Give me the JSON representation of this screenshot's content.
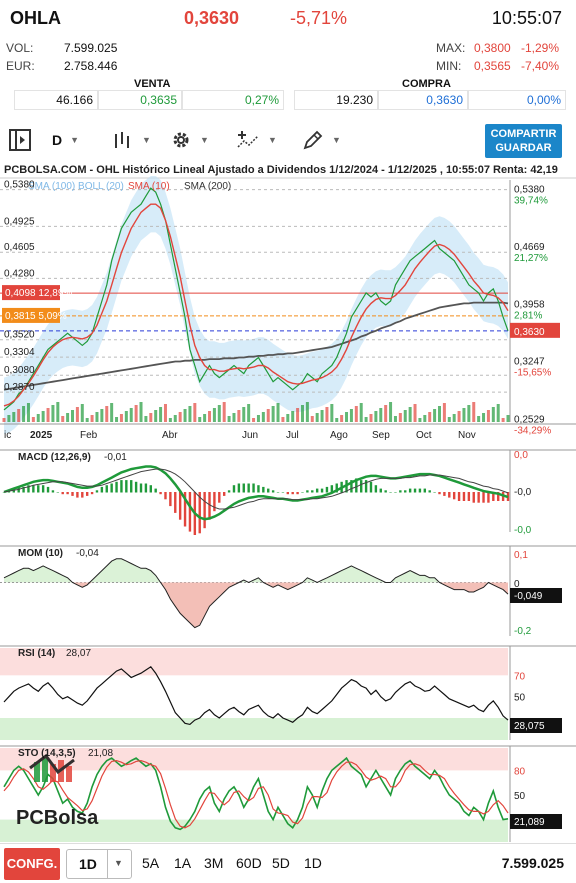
{
  "header": {
    "ticker": "OHLA",
    "price": "0,3630",
    "change_pct": "-5,71%",
    "time": "10:55:07",
    "vol_label": "VOL:",
    "vol_value": "7.599.025",
    "eur_label": "EUR:",
    "eur_value": "2.758.446",
    "max_label": "MAX:",
    "max_value": "0,3800",
    "max_pct": "-1,29%",
    "min_label": "MIN:",
    "min_value": "0,3565",
    "min_pct": "-7,40%"
  },
  "orderbook": {
    "venta_label": "VENTA",
    "compra_label": "COMPRA",
    "venta_qty": "46.166",
    "venta_price": "0,3635",
    "venta_pct": "0,27%",
    "compra_qty": "19.230",
    "compra_price": "0,3630",
    "compra_pct": "0,00%"
  },
  "toolbar": {
    "period": "D",
    "share_line1": "COMPARTIR",
    "share_line2": "GUARDAR"
  },
  "chart_title": "PCBOLSA.COM - OHL Histórico Lineal Ajustado a Dividendos 1/12/2024 - 1/12/2025 , 10:55:07 Renta: 42,19",
  "legend": {
    "bb_label": "SMA (100)  BOLL (20)",
    "sma10_label": "SMA (10)",
    "sma200_label": "SMA (200)"
  },
  "watermark": "PCBolsa",
  "colors": {
    "up": "#1f9a3a",
    "down": "#e2453c",
    "accent": "#1b86c9",
    "boll": "#bcdff5"
  },
  "chart_data": [
    {
      "type": "line",
      "name": "price",
      "x_ticks": [
        "ic",
        "2025",
        "Feb",
        "Abr",
        "Jun",
        "Jul",
        "Ago",
        "Sep",
        "Oct",
        "Nov"
      ],
      "y_ticks": [
        "0,5380",
        "0,4925",
        "0,4605",
        "0,4280",
        "0,3520",
        "0,3304",
        "0,3080",
        "0,2870"
      ],
      "right_ticks": [
        {
          "value": "0,5380",
          "pct": "39,74%"
        },
        {
          "value": "0,4669",
          "pct": "21,27%"
        },
        {
          "value": "0,3958",
          "pct": "2,81%"
        },
        {
          "value": "0,3247",
          "pct": "-15,65%"
        },
        {
          "value": "0,2529",
          "pct": "-34,29%"
        }
      ],
      "tag_a": {
        "value": "0,4098",
        "pct": "12,89%"
      },
      "tag_b": {
        "value": "0,3815",
        "pct": "5,09%"
      },
      "last_tag": "0,3630",
      "ylim": [
        0.25,
        0.55
      ],
      "close": [
        0.265,
        0.27,
        0.275,
        0.285,
        0.29,
        0.3,
        0.31,
        0.32,
        0.33,
        0.34,
        0.345,
        0.35,
        0.355,
        0.36,
        0.355,
        0.35,
        0.345,
        0.35,
        0.36,
        0.38,
        0.4,
        0.42,
        0.45,
        0.47,
        0.49,
        0.5,
        0.51,
        0.515,
        0.52,
        0.53,
        0.54,
        0.535,
        0.52,
        0.5,
        0.47,
        0.44,
        0.41,
        0.38,
        0.34,
        0.32,
        0.3,
        0.31,
        0.32,
        0.31,
        0.305,
        0.31,
        0.315,
        0.32,
        0.315,
        0.31,
        0.32,
        0.325,
        0.33,
        0.32,
        0.31,
        0.3,
        0.305,
        0.3,
        0.295,
        0.29,
        0.295,
        0.3,
        0.31,
        0.305,
        0.3,
        0.31,
        0.315,
        0.32,
        0.33,
        0.345,
        0.36,
        0.38,
        0.39,
        0.4,
        0.41,
        0.405,
        0.41,
        0.4,
        0.395,
        0.4,
        0.42,
        0.43,
        0.44,
        0.45,
        0.455,
        0.46,
        0.465,
        0.47,
        0.475,
        0.465,
        0.46,
        0.455,
        0.45,
        0.44,
        0.43,
        0.42,
        0.415,
        0.41,
        0.4,
        0.41,
        0.415,
        0.4,
        0.38,
        0.363
      ],
      "sma10": [
        0.27,
        0.272,
        0.276,
        0.282,
        0.29,
        0.298,
        0.307,
        0.317,
        0.327,
        0.336,
        0.343,
        0.348,
        0.352,
        0.354,
        0.355,
        0.354,
        0.353,
        0.355,
        0.36,
        0.37,
        0.385,
        0.4,
        0.42,
        0.44,
        0.46,
        0.475,
        0.49,
        0.5,
        0.51,
        0.515,
        0.52,
        0.52,
        0.515,
        0.5,
        0.48,
        0.455,
        0.43,
        0.4,
        0.37,
        0.345,
        0.33,
        0.32,
        0.315,
        0.315,
        0.313,
        0.313,
        0.315,
        0.316,
        0.317,
        0.316,
        0.317,
        0.318,
        0.32,
        0.32,
        0.317,
        0.312,
        0.308,
        0.304,
        0.3,
        0.298,
        0.297,
        0.298,
        0.3,
        0.302,
        0.303,
        0.305,
        0.308,
        0.312,
        0.318,
        0.328,
        0.34,
        0.355,
        0.368,
        0.38,
        0.39,
        0.397,
        0.402,
        0.404,
        0.403,
        0.403,
        0.407,
        0.413,
        0.42,
        0.43,
        0.44,
        0.448,
        0.455,
        0.462,
        0.468,
        0.47,
        0.468,
        0.464,
        0.458,
        0.45,
        0.442,
        0.434,
        0.425,
        0.418,
        0.41,
        0.408,
        0.407,
        0.404,
        0.398,
        0.388
      ],
      "sma200": [
        0.29,
        0.291,
        0.292,
        0.293,
        0.294,
        0.295,
        0.296,
        0.297,
        0.298,
        0.299,
        0.3,
        0.301,
        0.302,
        0.303,
        0.304,
        0.305,
        0.306,
        0.307,
        0.308,
        0.309,
        0.31,
        0.311,
        0.312,
        0.313,
        0.314,
        0.315,
        0.316,
        0.317,
        0.318,
        0.319,
        0.32,
        0.321,
        0.322,
        0.323,
        0.324,
        0.325,
        0.325,
        0.326,
        0.326,
        0.327,
        0.327,
        0.327,
        0.328,
        0.328,
        0.328,
        0.329,
        0.329,
        0.329,
        0.33,
        0.33,
        0.331,
        0.331,
        0.332,
        0.332,
        0.333,
        0.333,
        0.334,
        0.334,
        0.335,
        0.335,
        0.336,
        0.337,
        0.338,
        0.339,
        0.34,
        0.341,
        0.342,
        0.343,
        0.345,
        0.347,
        0.349,
        0.351,
        0.353,
        0.356,
        0.358,
        0.361,
        0.363,
        0.366,
        0.368,
        0.37,
        0.373,
        0.375,
        0.378,
        0.38,
        0.382,
        0.384,
        0.386,
        0.388,
        0.39,
        0.392,
        0.393,
        0.394,
        0.395,
        0.396,
        0.397,
        0.397,
        0.398,
        0.398,
        0.398,
        0.398,
        0.398,
        0.398,
        0.398,
        0.397
      ]
    },
    {
      "type": "line",
      "name": "MACD (12,26,9)",
      "label": "MACD (12,26,9)",
      "value": "-0,01",
      "y_ticks": [
        "0,0",
        "-0,0",
        "-0,0"
      ],
      "ylim": [
        -0.04,
        0.04
      ],
      "values": [
        0.0,
        0.002,
        0.004,
        0.006,
        0.008,
        0.01,
        0.012,
        0.013,
        0.014,
        0.014,
        0.013,
        0.012,
        0.011,
        0.01,
        0.008,
        0.006,
        0.005,
        0.005,
        0.006,
        0.008,
        0.011,
        0.014,
        0.017,
        0.02,
        0.023,
        0.025,
        0.027,
        0.028,
        0.029,
        0.03,
        0.03,
        0.029,
        0.026,
        0.022,
        0.016,
        0.009,
        0.001,
        -0.008,
        -0.017,
        -0.025,
        -0.03,
        -0.032,
        -0.031,
        -0.029,
        -0.026,
        -0.022,
        -0.018,
        -0.014,
        -0.011,
        -0.009,
        -0.007,
        -0.006,
        -0.005,
        -0.005,
        -0.006,
        -0.007,
        -0.008,
        -0.008,
        -0.009,
        -0.01,
        -0.01,
        -0.009,
        -0.008,
        -0.007,
        -0.006,
        -0.005,
        -0.003,
        -0.001,
        0.002,
        0.005,
        0.008,
        0.011,
        0.014,
        0.016,
        0.018,
        0.019,
        0.019,
        0.018,
        0.017,
        0.016,
        0.016,
        0.017,
        0.018,
        0.019,
        0.02,
        0.021,
        0.021,
        0.021,
        0.02,
        0.019,
        0.017,
        0.015,
        0.013,
        0.011,
        0.009,
        0.007,
        0.005,
        0.003,
        0.001,
        0.0,
        -0.001,
        -0.002,
        -0.004,
        -0.006
      ],
      "signal": [
        0.0,
        0.001,
        0.002,
        0.003,
        0.005,
        0.006,
        0.008,
        0.009,
        0.01,
        0.011,
        0.012,
        0.012,
        0.012,
        0.011,
        0.01,
        0.009,
        0.008,
        0.007,
        0.007,
        0.007,
        0.008,
        0.01,
        0.012,
        0.014,
        0.016,
        0.018,
        0.02,
        0.022,
        0.024,
        0.025,
        0.026,
        0.027,
        0.027,
        0.026,
        0.024,
        0.021,
        0.017,
        0.012,
        0.006,
        0.0,
        -0.006,
        -0.011,
        -0.015,
        -0.018,
        -0.02,
        -0.02,
        -0.019,
        -0.018,
        -0.016,
        -0.014,
        -0.012,
        -0.011,
        -0.009,
        -0.008,
        -0.008,
        -0.008,
        -0.008,
        -0.008,
        -0.008,
        -0.009,
        -0.009,
        -0.009,
        -0.009,
        -0.008,
        -0.008,
        -0.007,
        -0.006,
        -0.005,
        -0.003,
        -0.001,
        0.001,
        0.004,
        0.006,
        0.009,
        0.011,
        0.013,
        0.015,
        0.016,
        0.016,
        0.016,
        0.016,
        0.016,
        0.017,
        0.017,
        0.018,
        0.019,
        0.019,
        0.02,
        0.02,
        0.02,
        0.019,
        0.018,
        0.017,
        0.016,
        0.014,
        0.012,
        0.011,
        0.009,
        0.007,
        0.006,
        0.004,
        0.003,
        0.001,
        -0.001
      ]
    },
    {
      "type": "line",
      "name": "MOM (10)",
      "label": "MOM (10)",
      "value": "-0,04",
      "y_ticks": [
        "0,1",
        "0",
        "-0,2"
      ],
      "last_tag": "-0,049",
      "ylim": [
        -0.2,
        0.12
      ],
      "values": [
        0.02,
        0.03,
        0.04,
        0.05,
        0.06,
        0.06,
        0.05,
        0.06,
        0.07,
        0.06,
        0.05,
        0.04,
        0.03,
        0.02,
        0.0,
        -0.01,
        -0.02,
        -0.01,
        0.01,
        0.03,
        0.05,
        0.07,
        0.09,
        0.1,
        0.1,
        0.09,
        0.08,
        0.07,
        0.06,
        0.06,
        0.05,
        0.03,
        0.0,
        -0.03,
        -0.07,
        -0.1,
        -0.13,
        -0.15,
        -0.17,
        -0.19,
        -0.18,
        -0.14,
        -0.1,
        -0.08,
        -0.06,
        -0.04,
        -0.02,
        -0.01,
        0.0,
        0.01,
        0.0,
        0.01,
        0.02,
        0.0,
        -0.01,
        -0.02,
        -0.01,
        -0.02,
        -0.03,
        -0.02,
        -0.01,
        0.0,
        0.02,
        0.01,
        0.0,
        0.01,
        0.02,
        0.03,
        0.04,
        0.05,
        0.06,
        0.07,
        0.06,
        0.05,
        0.04,
        0.03,
        0.02,
        0.01,
        0.0,
        0.0,
        0.02,
        0.03,
        0.04,
        0.05,
        0.04,
        0.03,
        0.03,
        0.02,
        0.02,
        0.0,
        -0.01,
        -0.02,
        -0.03,
        -0.03,
        -0.03,
        -0.04,
        -0.04,
        -0.03,
        -0.02,
        0.0,
        -0.01,
        -0.02,
        -0.03,
        -0.049
      ]
    },
    {
      "type": "line",
      "name": "RSI (14)",
      "label": "RSI (14)",
      "value": "28,07",
      "y_ticks": [
        "70",
        "50"
      ],
      "last_tag": "28,075",
      "ylim": [
        15,
        90
      ],
      "values": [
        45,
        50,
        55,
        58,
        60,
        62,
        58,
        55,
        60,
        63,
        58,
        52,
        48,
        50,
        47,
        44,
        42,
        46,
        52,
        58,
        62,
        66,
        70,
        74,
        76,
        72,
        68,
        70,
        72,
        75,
        78,
        72,
        64,
        55,
        45,
        35,
        30,
        25,
        24,
        28,
        30,
        35,
        38,
        33,
        30,
        34,
        38,
        40,
        36,
        33,
        38,
        40,
        42,
        36,
        32,
        30,
        34,
        30,
        28,
        26,
        30,
        33,
        40,
        36,
        34,
        38,
        42,
        46,
        52,
        58,
        62,
        66,
        64,
        60,
        58,
        52,
        56,
        50,
        46,
        48,
        54,
        58,
        62,
        64,
        60,
        58,
        55,
        56,
        60,
        56,
        52,
        48,
        46,
        44,
        42,
        40,
        42,
        38,
        36,
        42,
        46,
        40,
        32,
        28
      ]
    },
    {
      "type": "line",
      "name": "STO (14,3,5)",
      "label": "STO (14,3,5)",
      "value": "21,08",
      "y_ticks": [
        "80",
        "50"
      ],
      "last_tag": "21,089",
      "ylim": [
        0,
        100
      ],
      "k": [
        60,
        70,
        80,
        85,
        80,
        70,
        60,
        50,
        60,
        75,
        70,
        55,
        40,
        45,
        35,
        30,
        28,
        40,
        60,
        75,
        85,
        92,
        95,
        90,
        85,
        88,
        92,
        95,
        90,
        85,
        88,
        80,
        60,
        35,
        18,
        10,
        8,
        12,
        20,
        30,
        45,
        55,
        60,
        40,
        30,
        45,
        55,
        60,
        50,
        35,
        45,
        60,
        70,
        50,
        30,
        20,
        35,
        25,
        15,
        10,
        20,
        35,
        60,
        50,
        35,
        55,
        70,
        80,
        85,
        90,
        95,
        85,
        80,
        75,
        60,
        70,
        80,
        70,
        60,
        50,
        70,
        80,
        88,
        92,
        85,
        80,
        75,
        70,
        80,
        72,
        60,
        50,
        45,
        40,
        30,
        25,
        35,
        30,
        20,
        40,
        55,
        35,
        20,
        21
      ],
      "d": [
        55,
        62,
        72,
        80,
        82,
        78,
        70,
        60,
        57,
        62,
        68,
        66,
        56,
        47,
        42,
        37,
        31,
        33,
        43,
        58,
        73,
        84,
        91,
        92,
        90,
        87,
        88,
        91,
        92,
        90,
        87,
        85,
        76,
        58,
        38,
        21,
        12,
        10,
        13,
        21,
        32,
        43,
        53,
        52,
        44,
        38,
        43,
        53,
        55,
        48,
        43,
        47,
        58,
        60,
        50,
        33,
        28,
        27,
        25,
        17,
        15,
        22,
        38,
        48,
        48,
        47,
        53,
        68,
        78,
        85,
        90,
        90,
        87,
        80,
        72,
        68,
        70,
        73,
        70,
        60,
        60,
        67,
        80,
        87,
        88,
        86,
        80,
        75,
        75,
        74,
        70,
        60,
        52,
        45,
        38,
        32,
        30,
        30,
        27,
        30,
        38,
        43,
        37,
        28
      ]
    }
  ],
  "bottom": {
    "confg": "CONFG.",
    "period": "1D",
    "tabs": [
      "5A",
      "1A",
      "3M",
      "60D",
      "5D",
      "1D"
    ],
    "volume": "7.599.025"
  }
}
